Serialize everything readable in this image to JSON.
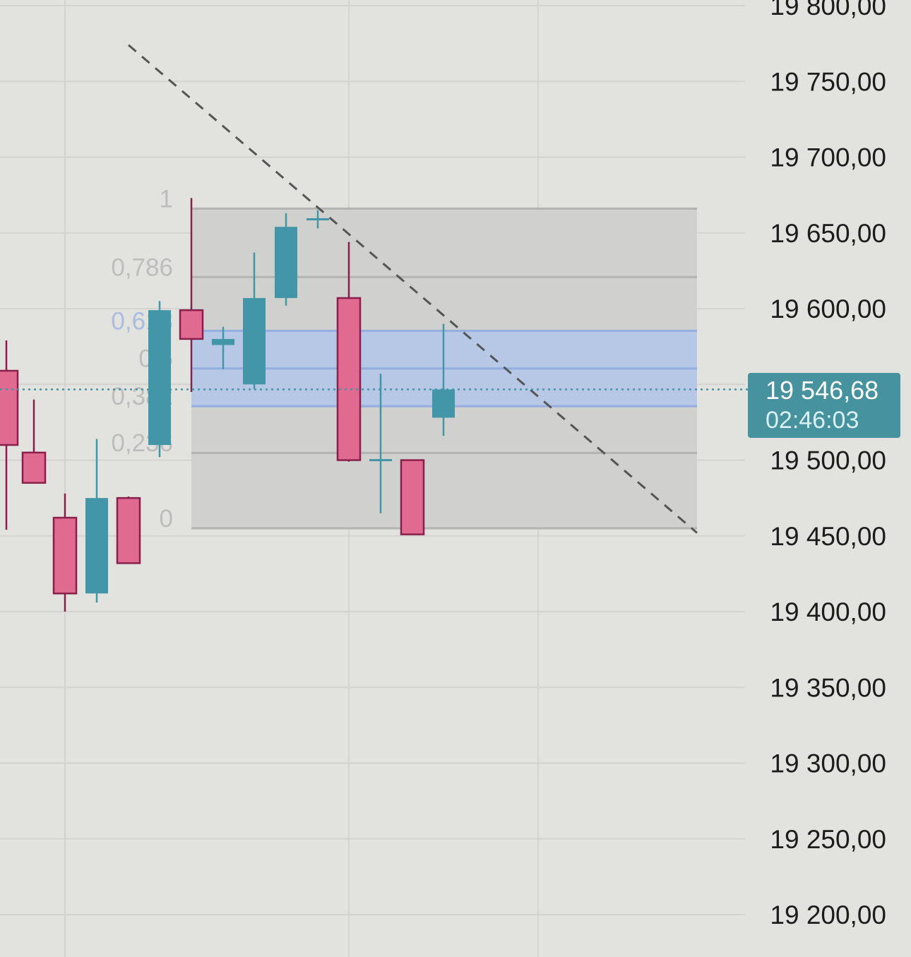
{
  "chart_data": {
    "type": "candlestick",
    "y_axis": {
      "min": 19180,
      "max": 19810,
      "ticks": [
        "19 800,00",
        "19 750,00",
        "19 700,00",
        "19 650,00",
        "19 600,00",
        "19 550,00",
        "19 500,00",
        "19 450,00",
        "19 400,00",
        "19 350,00",
        "19 300,00",
        "19 250,00",
        "19 200,00"
      ],
      "tick_values": [
        19800,
        19750,
        19700,
        19650,
        19600,
        19550,
        19500,
        19450,
        19400,
        19350,
        19300,
        19250,
        19200
      ]
    },
    "candles": [
      {
        "open": 19559,
        "high": 19579,
        "low": 19454,
        "close": 19510,
        "dir": "down"
      },
      {
        "open": 19505,
        "high": 19540,
        "low": 19485,
        "close": 19485,
        "dir": "down"
      },
      {
        "open": 19462,
        "high": 19478,
        "low": 19400,
        "close": 19412,
        "dir": "down"
      },
      {
        "open": 19412,
        "high": 19514,
        "low": 19406,
        "close": 19475,
        "dir": "up"
      },
      {
        "open": 19475,
        "high": 19476,
        "low": 19432,
        "close": 19432,
        "dir": "down"
      },
      {
        "open": 19510,
        "high": 19605,
        "low": 19502,
        "close": 19599,
        "dir": "up"
      },
      {
        "open": 19599,
        "high": 19673,
        "low": 19545,
        "close": 19580,
        "dir": "down"
      },
      {
        "open": 19576,
        "high": 19588,
        "low": 19560,
        "close": 19580,
        "dir": "up"
      },
      {
        "open": 19550,
        "high": 19637,
        "low": 19547,
        "close": 19607,
        "dir": "up"
      },
      {
        "open": 19607,
        "high": 19663,
        "low": 19602,
        "close": 19654,
        "dir": "up"
      },
      {
        "open": 19659,
        "high": 19665,
        "low": 19653,
        "close": 19659,
        "dir": "up"
      },
      {
        "open": 19607,
        "high": 19644,
        "low": 19499,
        "close": 19500,
        "dir": "down"
      },
      {
        "open": 19500,
        "high": 19557,
        "low": 19465,
        "close": 19500,
        "dir": "up"
      },
      {
        "open": 19500,
        "high": 19500,
        "low": 19451,
        "close": 19451,
        "dir": "down"
      },
      {
        "open": 19528,
        "high": 19590,
        "low": 19516,
        "close": 19546.68,
        "dir": "up"
      }
    ],
    "fib_retracement": {
      "high": 19666,
      "low": 19455,
      "levels": [
        {
          "label": "1",
          "ratio": 1
        },
        {
          "label": "0,786",
          "ratio": 0.786
        },
        {
          "label": "0,618",
          "ratio": 0.618
        },
        {
          "label": "0,5",
          "ratio": 0.5
        },
        {
          "label": "0,382",
          "ratio": 0.382
        },
        {
          "label": "0,236",
          "ratio": 0.236
        },
        {
          "label": "0",
          "ratio": 0
        }
      ]
    },
    "trendline": {
      "style": "dashed",
      "from_price": 19774,
      "to_price": 19452
    },
    "current_price_line": 19546.68,
    "grid": true,
    "colors": {
      "up": "#4296a7",
      "down": "#e16a90",
      "down_border": "#8a1f4c",
      "fib_band": "#b6c8e6",
      "fib_zone": "#d0d0cf",
      "price_tag": "#46929f"
    }
  },
  "price_tag": {
    "price": "19 546,68",
    "countdown": "02:46:03"
  }
}
